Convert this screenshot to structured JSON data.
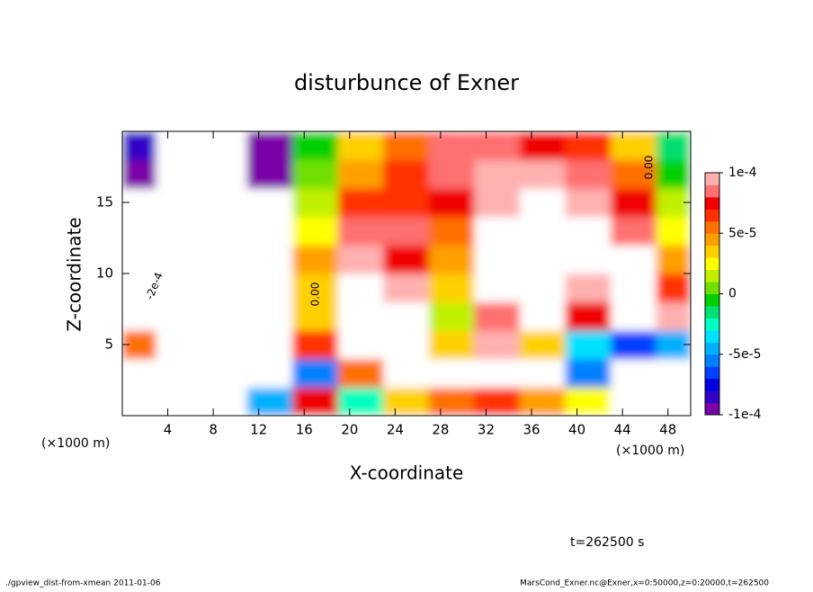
{
  "chart_data": {
    "type": "contourf",
    "title": "disturbunce of Exner",
    "x_label": "X-coordinate",
    "y_label": "Z-coordinate",
    "x_unit": "(×1000 m)",
    "x_unit_right": "(×1000 m)",
    "time_label": "t=262500 s",
    "footer_left": "./gpview_dist-from-xmean  2011-01-06",
    "footer_right": "MarsCond_Exner.nc@Exner,x=0:50000,z=0:20000,t=262500",
    "contour_labels": [
      "-2e-4",
      "0.00",
      "0.00"
    ],
    "xlim": [
      0,
      50
    ],
    "ylim": [
      0,
      20
    ],
    "xticks": [
      4,
      8,
      12,
      16,
      20,
      24,
      28,
      32,
      36,
      40,
      44,
      48
    ],
    "yticks": [
      5,
      10,
      15
    ],
    "x": [
      1,
      5,
      9,
      13,
      17,
      21,
      25,
      29,
      33,
      37,
      41,
      45,
      49
    ],
    "y": [
      1,
      3,
      5,
      7,
      9,
      11,
      13,
      15,
      17,
      19
    ],
    "z": [
      [
        0.0002,
        0.0002,
        -0.0002,
        -5e-05,
        7e-05,
        -3e-05,
        3e-05,
        5e-05,
        6e-05,
        4e-05,
        2e-05,
        -0.0002,
        -0.0002
      ],
      [
        0.0002,
        -0.0002,
        -0.0002,
        -0.0002,
        -6e-05,
        5e-05,
        0.0002,
        0.0002,
        0.0002,
        0.0002,
        -6e-05,
        -0.0002,
        -0.0002
      ],
      [
        5e-05,
        -0.0002,
        -0.0002,
        -0.0002,
        6e-05,
        0.0002,
        0.0002,
        3e-05,
        9e-05,
        3e-05,
        -4e-05,
        -7e-05,
        -5e-05
      ],
      [
        -0.0002,
        -0.0002,
        -0.0002,
        -0.0002,
        3e-05,
        0.0002,
        0.0002,
        1e-05,
        8e-05,
        0.0002,
        7e-05,
        0.0002,
        9e-05
      ],
      [
        -0.0002,
        -0.0002,
        -0.0002,
        -0.0002,
        3e-05,
        0.0002,
        9e-05,
        3e-05,
        0.0002,
        0.0002,
        9e-05,
        0.0002,
        6e-05
      ],
      [
        -0.0002,
        -0.0002,
        -0.0002,
        -0.0002,
        4e-05,
        9e-05,
        7e-05,
        4e-05,
        0.0002,
        0.0002,
        0.0002,
        0.0002,
        4e-05
      ],
      [
        -0.0002,
        -0.0002,
        -0.0002,
        -0.0002,
        2e-05,
        8e-05,
        8e-05,
        5e-05,
        0.0002,
        0.0002,
        0.0002,
        8e-05,
        2e-05
      ],
      [
        -0.0002,
        -0.0002,
        -0.0002,
        -0.0002,
        1e-05,
        6e-05,
        6e-05,
        7e-05,
        9e-05,
        0.0002,
        9.5e-05,
        7e-05,
        1e-05
      ],
      [
        -9e-05,
        -0.00015,
        -0.0002,
        -9.5e-05,
        0,
        4e-05,
        6e-05,
        8e-05,
        9e-05,
        9e-05,
        8e-05,
        5e-05,
        -1e-05
      ],
      [
        -8e-05,
        -0.0002,
        -0.0002,
        -9e-05,
        -1e-05,
        3e-05,
        5e-05,
        8e-05,
        8e-05,
        7e-05,
        6e-05,
        3e-05,
        -2e-05
      ]
    ],
    "zlim": [
      -0.0001,
      0.0001
    ],
    "colorbar_ticks": [
      {
        "value": 0.0001,
        "label": "1e-4"
      },
      {
        "value": 5e-05,
        "label": "5e-5"
      },
      0,
      {
        "value": -5e-05,
        "label": "-5e-5"
      },
      {
        "value": -0.0001,
        "label": "-1e-4"
      }
    ],
    "colors": [
      "#7a00a8",
      "#3300c8",
      "#0000e0",
      "#0040ff",
      "#0080ff",
      "#00b0ff",
      "#00e0ff",
      "#00ffc0",
      "#00e070",
      "#00d000",
      "#70e000",
      "#c0f000",
      "#ffff00",
      "#ffd000",
      "#ffa000",
      "#ff7000",
      "#ff3000",
      "#f00000",
      "#ff7070",
      "#ffb0b0"
    ],
    "out_of_range_color": "#ffffff"
  }
}
